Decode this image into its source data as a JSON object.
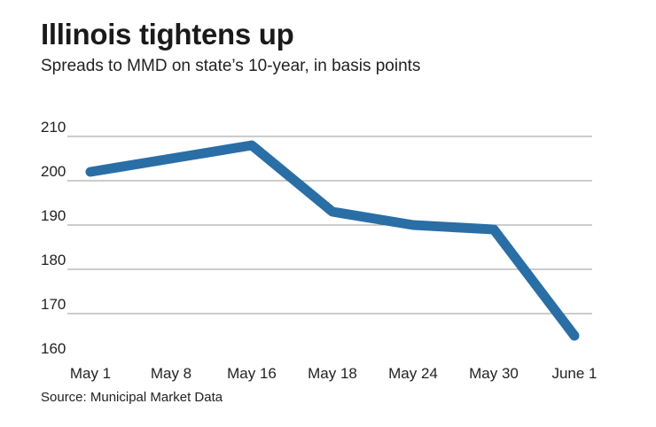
{
  "header": {
    "title": "Illinois tightens up",
    "subtitle": "Spreads to MMD on state’s 10-year, in basis points"
  },
  "footer": {
    "source": "Source: Municipal Market Data"
  },
  "chart_data": {
    "type": "line",
    "title": "Illinois tightens up",
    "subtitle": "Spreads to MMD on state’s 10-year, in basis points",
    "xlabel": "",
    "ylabel": "",
    "categories": [
      "May 1",
      "May 8",
      "May 16",
      "May 18",
      "May 24",
      "May 30",
      "June 1"
    ],
    "y_ticks": [
      210,
      200,
      190,
      180,
      170,
      160
    ],
    "ylim": [
      160,
      210
    ],
    "grid": true,
    "series": [
      {
        "values": [
          202,
          205,
          208,
          193,
          190,
          189,
          165
        ],
        "color": "#2a6ea6"
      }
    ]
  }
}
